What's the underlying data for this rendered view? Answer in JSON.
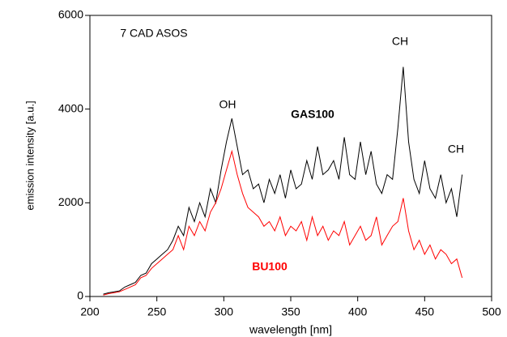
{
  "chart_data": {
    "type": "line",
    "xlabel": "wavelength [nm]",
    "ylabel": "emission intensity [a.u.]",
    "annotations": [
      "7 CAD ASOS",
      "OH",
      "CH",
      "CH"
    ],
    "x": [
      210,
      214,
      218,
      222,
      226,
      230,
      234,
      238,
      242,
      246,
      250,
      254,
      258,
      262,
      266,
      270,
      274,
      278,
      282,
      286,
      290,
      294,
      298,
      302,
      306,
      310,
      314,
      318,
      322,
      326,
      330,
      334,
      338,
      342,
      346,
      350,
      354,
      358,
      362,
      366,
      370,
      374,
      378,
      382,
      386,
      390,
      394,
      398,
      402,
      406,
      410,
      414,
      418,
      422,
      426,
      430,
      434,
      438,
      442,
      446,
      450,
      454,
      458,
      462,
      466,
      470,
      474,
      478
    ],
    "series": [
      {
        "name": "GAS100",
        "color": "#000000",
        "values": [
          50,
          80,
          100,
          120,
          200,
          250,
          300,
          450,
          500,
          700,
          800,
          900,
          1000,
          1200,
          1500,
          1300,
          1900,
          1600,
          2000,
          1700,
          2300,
          2000,
          2700,
          3300,
          3800,
          3200,
          2600,
          2700,
          2300,
          2400,
          2000,
          2500,
          2200,
          2600,
          2100,
          2700,
          2300,
          2400,
          2900,
          2500,
          3200,
          2600,
          2700,
          2900,
          2500,
          3400,
          2600,
          2500,
          3300,
          2600,
          3100,
          2400,
          2200,
          2600,
          2500,
          3600,
          4900,
          3300,
          2500,
          2200,
          2900,
          2300,
          2100,
          2600,
          2000,
          2300,
          1700,
          2600
        ]
      },
      {
        "name": "BU100",
        "color": "#ff0000",
        "values": [
          30,
          60,
          80,
          100,
          150,
          200,
          250,
          400,
          450,
          600,
          700,
          800,
          900,
          1000,
          1300,
          1000,
          1500,
          1300,
          1600,
          1400,
          1800,
          2000,
          2300,
          2700,
          3100,
          2600,
          2200,
          1900,
          1800,
          1700,
          1500,
          1600,
          1400,
          1700,
          1300,
          1500,
          1400,
          1600,
          1200,
          1700,
          1300,
          1500,
          1200,
          1400,
          1300,
          1600,
          1100,
          1300,
          1500,
          1200,
          1300,
          1700,
          1100,
          1300,
          1500,
          1600,
          2100,
          1400,
          1000,
          1200,
          900,
          1100,
          800,
          1000,
          900,
          700,
          800,
          400
        ]
      }
    ],
    "xlim": [
      200,
      500
    ],
    "xticks": [
      200,
      250,
      300,
      350,
      400,
      450,
      500
    ],
    "ylim": [
      0,
      6000
    ],
    "yticks": [
      0,
      2000,
      4000,
      6000
    ]
  }
}
